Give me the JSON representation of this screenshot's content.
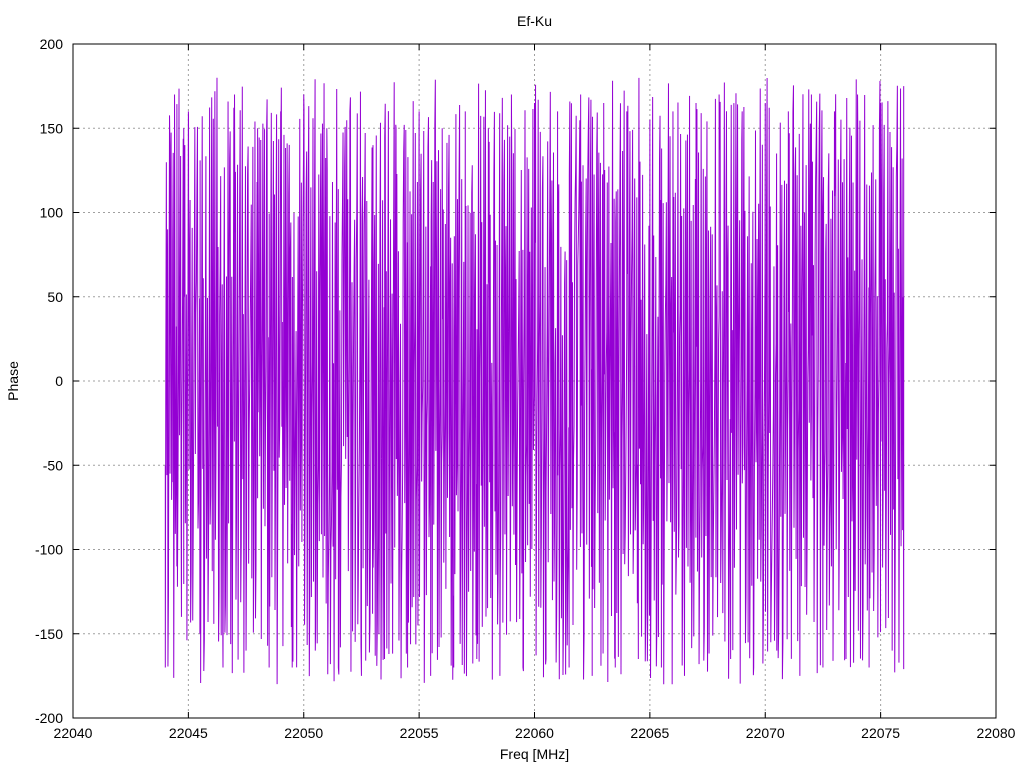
{
  "chart_data": {
    "type": "line",
    "title": "Ef-Ku",
    "xlabel": "Freq [MHz]",
    "ylabel": "Phase",
    "xlim": [
      22040,
      22080
    ],
    "ylim": [
      -200,
      200
    ],
    "xticks": [
      22040,
      22045,
      22050,
      22055,
      22060,
      22065,
      22070,
      22075,
      22080
    ],
    "yticks": [
      -200,
      -150,
      -100,
      -50,
      0,
      50,
      100,
      150,
      200
    ],
    "grid": true,
    "legend": "none",
    "series": [
      {
        "color": "#9400d3",
        "x_start": 22044,
        "x_end": 22076,
        "phase_wrap_degrees": [
          -180,
          180
        ],
        "x": [
          22044.0,
          22044.1,
          22044.2,
          22044.3,
          22044.4,
          22044.5,
          22044.6,
          22044.7,
          22044.8,
          22044.9,
          22045.0,
          22045.5,
          22046.0,
          22046.5,
          22047.0,
          22047.5,
          22048.0,
          22048.5,
          22049.0,
          22049.5,
          22050.0,
          22050.5,
          22051.0,
          22051.5,
          22052.0,
          22052.5,
          22053.0,
          22053.5,
          22054.0,
          22054.5,
          22055.0,
          22055.5,
          22056.0,
          22056.5,
          22057.0,
          22057.5,
          22058.0,
          22058.5,
          22059.0,
          22059.5,
          22060.0,
          22060.5,
          22061.0,
          22061.5,
          22062.0,
          22062.5,
          22063.0,
          22063.5,
          22064.0,
          22064.5,
          22065.0,
          22065.5,
          22066.0,
          22066.5,
          22067.0,
          22067.5,
          22068.0,
          22068.5,
          22069.0,
          22069.5,
          22070.0,
          22070.5,
          22071.0,
          22071.5,
          22072.0,
          22072.5,
          22073.0,
          22073.5,
          22074.0,
          22074.5,
          22075.0,
          22075.5,
          22076.0
        ],
        "y": [
          -170,
          90,
          140,
          -60,
          170,
          -110,
          60,
          -140,
          150,
          -30,
          160,
          -150,
          120,
          -170,
          170,
          -160,
          150,
          -170,
          160,
          -170,
          170,
          -160,
          150,
          -170,
          160,
          -175,
          140,
          -165,
          150,
          -170,
          160,
          -175,
          150,
          -170,
          160,
          -165,
          150,
          -175,
          170,
          -170,
          165,
          -165,
          160,
          -170,
          170,
          -175,
          165,
          -170,
          160,
          -165,
          155,
          -170,
          160,
          -175,
          165,
          -170,
          170,
          -165,
          160,
          -170,
          165,
          -160,
          160,
          -175,
          170,
          -170,
          160,
          -165,
          170,
          -170,
          165,
          -160,
          175
        ]
      }
    ]
  }
}
